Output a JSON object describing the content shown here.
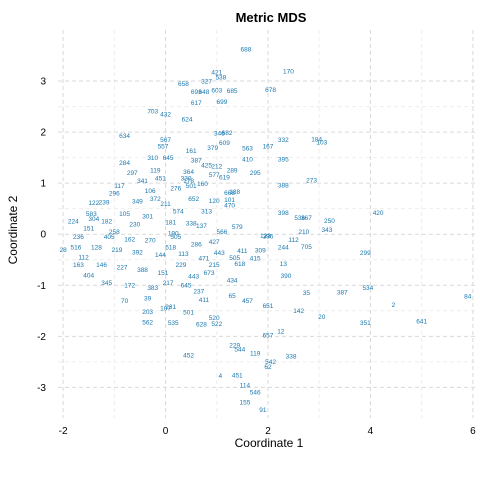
{
  "chart_data": {
    "type": "scatter",
    "title": "Metric  MDS",
    "xlabel": "Coordinate 1",
    "ylabel": "Coordinate 2",
    "xlim": [
      -2.1,
      6.1
    ],
    "ylim": [
      -3.6,
      4.0
    ],
    "xticks": [
      -2,
      0,
      2,
      4,
      6
    ],
    "yticks": [
      -3,
      -2,
      -1,
      0,
      1,
      2,
      3
    ],
    "xtick_labels": [
      "-2",
      "0",
      "2",
      "4",
      "6"
    ],
    "ytick_labels": [
      "-3",
      "-2",
      "-1",
      "0",
      "1",
      "2",
      "3"
    ],
    "grid": true,
    "label_color": "#1a78b0",
    "points": [
      {
        "label": "688",
        "x": 1.57,
        "y": 3.62
      },
      {
        "label": "170",
        "x": 2.4,
        "y": 3.19
      },
      {
        "label": "421",
        "x": 1.0,
        "y": 3.17
      },
      {
        "label": "538",
        "x": 1.08,
        "y": 3.08
      },
      {
        "label": "327",
        "x": 0.8,
        "y": 3.0
      },
      {
        "label": "658",
        "x": 0.35,
        "y": 2.95
      },
      {
        "label": "678",
        "x": 2.05,
        "y": 2.83
      },
      {
        "label": "685",
        "x": 1.3,
        "y": 2.81
      },
      {
        "label": "603",
        "x": 1.0,
        "y": 2.82
      },
      {
        "label": "693",
        "x": 0.6,
        "y": 2.79
      },
      {
        "label": "648",
        "x": 0.75,
        "y": 2.79
      },
      {
        "label": "617",
        "x": 0.6,
        "y": 2.58
      },
      {
        "label": "699",
        "x": 1.1,
        "y": 2.6
      },
      {
        "label": "703",
        "x": -0.25,
        "y": 2.41
      },
      {
        "label": "432",
        "x": 0.0,
        "y": 2.35
      },
      {
        "label": "624",
        "x": 0.42,
        "y": 2.25
      },
      {
        "label": "634",
        "x": -0.8,
        "y": 1.93
      },
      {
        "label": "346",
        "x": 1.05,
        "y": 1.98
      },
      {
        "label": "682",
        "x": 1.2,
        "y": 1.99
      },
      {
        "label": "567",
        "x": 0.0,
        "y": 1.85
      },
      {
        "label": "332",
        "x": 2.3,
        "y": 1.85
      },
      {
        "label": "184",
        "x": 2.95,
        "y": 1.86
      },
      {
        "label": "103",
        "x": 3.05,
        "y": 1.8
      },
      {
        "label": "609",
        "x": 1.15,
        "y": 1.79
      },
      {
        "label": "167",
        "x": 2.0,
        "y": 1.72
      },
      {
        "label": "379",
        "x": 0.92,
        "y": 1.69
      },
      {
        "label": "563",
        "x": 1.6,
        "y": 1.68
      },
      {
        "label": "410",
        "x": 1.6,
        "y": 1.47
      },
      {
        "label": "395",
        "x": 2.3,
        "y": 1.47
      },
      {
        "label": "645",
        "x": 0.05,
        "y": 1.5
      },
      {
        "label": "310",
        "x": -0.25,
        "y": 1.5
      },
      {
        "label": "425",
        "x": 0.8,
        "y": 1.35
      },
      {
        "label": "212",
        "x": 1.0,
        "y": 1.33
      },
      {
        "label": "364",
        "x": 0.45,
        "y": 1.22
      },
      {
        "label": "295",
        "x": 1.75,
        "y": 1.2
      },
      {
        "label": "273",
        "x": 2.85,
        "y": 1.06
      },
      {
        "label": "388",
        "x": 2.3,
        "y": 0.96
      },
      {
        "label": "178",
        "x": 0.45,
        "y": 1.05
      },
      {
        "label": "160",
        "x": 0.72,
        "y": 0.99
      },
      {
        "label": "668",
        "x": 1.25,
        "y": 0.81
      },
      {
        "label": "284",
        "x": -0.8,
        "y": 1.4
      },
      {
        "label": "122",
        "x": -1.4,
        "y": 0.62
      },
      {
        "label": "239",
        "x": -1.2,
        "y": 0.63
      },
      {
        "label": "583",
        "x": -1.45,
        "y": 0.4
      },
      {
        "label": "224",
        "x": -1.8,
        "y": 0.25
      },
      {
        "label": "236",
        "x": -1.7,
        "y": -0.05
      },
      {
        "label": "28",
        "x": -2.0,
        "y": -0.3
      },
      {
        "label": "420",
        "x": 4.15,
        "y": 0.42
      },
      {
        "label": "398",
        "x": 2.3,
        "y": 0.42
      },
      {
        "label": "536",
        "x": 2.62,
        "y": 0.32
      },
      {
        "label": "367",
        "x": 2.75,
        "y": 0.32
      },
      {
        "label": "250",
        "x": 3.2,
        "y": 0.26
      },
      {
        "label": "343",
        "x": 3.15,
        "y": 0.09
      },
      {
        "label": "210",
        "x": 2.7,
        "y": 0.05
      },
      {
        "label": "112",
        "x": 2.5,
        "y": -0.11
      },
      {
        "label": "244",
        "x": 2.3,
        "y": -0.25
      },
      {
        "label": "705",
        "x": 2.75,
        "y": -0.24
      },
      {
        "label": "299",
        "x": 3.9,
        "y": -0.36
      },
      {
        "label": "396",
        "x": 2.0,
        "y": -0.04
      },
      {
        "label": "123",
        "x": 1.95,
        "y": -0.03
      },
      {
        "label": "309",
        "x": 1.85,
        "y": -0.31
      },
      {
        "label": "13",
        "x": 2.3,
        "y": -0.58
      },
      {
        "label": "390",
        "x": 2.35,
        "y": -0.81
      },
      {
        "label": "415",
        "x": 1.75,
        "y": -0.47
      },
      {
        "label": "618",
        "x": 1.45,
        "y": -0.58
      },
      {
        "label": "434",
        "x": 1.3,
        "y": -0.9
      },
      {
        "label": "35",
        "x": 2.75,
        "y": -1.15
      },
      {
        "label": "387",
        "x": 3.45,
        "y": -1.14
      },
      {
        "label": "534",
        "x": 3.95,
        "y": -1.05
      },
      {
        "label": "84",
        "x": 5.9,
        "y": -1.21
      },
      {
        "label": "2",
        "x": 4.45,
        "y": -1.38
      },
      {
        "label": "641",
        "x": 5.0,
        "y": -1.7
      },
      {
        "label": "351",
        "x": 3.9,
        "y": -1.73
      },
      {
        "label": "20",
        "x": 3.05,
        "y": -1.62
      },
      {
        "label": "651",
        "x": 2.0,
        "y": -1.4
      },
      {
        "label": "142",
        "x": 2.6,
        "y": -1.5
      },
      {
        "label": "12",
        "x": 2.25,
        "y": -1.9
      },
      {
        "label": "657",
        "x": 2.0,
        "y": -1.98
      },
      {
        "label": "457",
        "x": 1.6,
        "y": -1.3
      },
      {
        "label": "65",
        "x": 1.3,
        "y": -1.2
      },
      {
        "label": "522",
        "x": 1.0,
        "y": -1.75
      },
      {
        "label": "520",
        "x": 0.95,
        "y": -1.64
      },
      {
        "label": "628",
        "x": 0.7,
        "y": -1.76
      },
      {
        "label": "501",
        "x": 0.45,
        "y": -1.53
      },
      {
        "label": "535",
        "x": 0.15,
        "y": -1.73
      },
      {
        "label": "562",
        "x": -0.35,
        "y": -1.72
      },
      {
        "label": "203",
        "x": -0.35,
        "y": -1.52
      },
      {
        "label": "107",
        "x": 0.0,
        "y": -1.45
      },
      {
        "label": "231",
        "x": 0.1,
        "y": -1.42
      },
      {
        "label": "70",
        "x": -0.8,
        "y": -1.3
      },
      {
        "label": "229",
        "x": 1.35,
        "y": -2.17
      },
      {
        "label": "544",
        "x": 1.45,
        "y": -2.25
      },
      {
        "label": "119",
        "x": 1.75,
        "y": -2.33
      },
      {
        "label": "452",
        "x": 0.45,
        "y": -2.37
      },
      {
        "label": "338",
        "x": 2.45,
        "y": -2.39
      },
      {
        "label": "542",
        "x": 2.05,
        "y": -2.5
      },
      {
        "label": "62",
        "x": 2.0,
        "y": -2.6
      },
      {
        "label": "4",
        "x": 1.07,
        "y": -2.77
      },
      {
        "label": "451",
        "x": 1.4,
        "y": -2.76
      },
      {
        "label": "114",
        "x": 1.55,
        "y": -2.96
      },
      {
        "label": "546",
        "x": 1.75,
        "y": -3.09
      },
      {
        "label": "155",
        "x": 1.55,
        "y": -3.29
      },
      {
        "label": "91",
        "x": 1.9,
        "y": -3.44
      },
      {
        "label": "577",
        "x": 0.95,
        "y": 1.17
      },
      {
        "label": "619",
        "x": 1.15,
        "y": 1.12
      },
      {
        "label": "289",
        "x": 1.3,
        "y": 1.25
      },
      {
        "label": "387",
        "x": 0.6,
        "y": 1.45
      },
      {
        "label": "161",
        "x": 0.5,
        "y": 1.64
      },
      {
        "label": "557",
        "x": -0.05,
        "y": 1.72
      },
      {
        "label": "501",
        "x": 0.5,
        "y": 0.95
      },
      {
        "label": "101",
        "x": 1.25,
        "y": 0.68
      },
      {
        "label": "188",
        "x": 1.35,
        "y": 0.83
      },
      {
        "label": "470",
        "x": 1.25,
        "y": 0.57
      },
      {
        "label": "120",
        "x": 0.95,
        "y": 0.66
      },
      {
        "label": "579",
        "x": 1.4,
        "y": 0.15
      },
      {
        "label": "443",
        "x": 1.05,
        "y": -0.36
      },
      {
        "label": "411",
        "x": 1.5,
        "y": -0.32
      },
      {
        "label": "505",
        "x": 1.35,
        "y": -0.46
      },
      {
        "label": "471",
        "x": 0.75,
        "y": -0.47
      },
      {
        "label": "215",
        "x": 0.95,
        "y": -0.6
      },
      {
        "label": "673",
        "x": 0.85,
        "y": -0.75
      },
      {
        "label": "443",
        "x": 0.55,
        "y": -0.82
      },
      {
        "label": "645",
        "x": 0.4,
        "y": -1.0
      },
      {
        "label": "411",
        "x": 0.75,
        "y": -1.28
      },
      {
        "label": "237",
        "x": 0.65,
        "y": -1.12
      },
      {
        "label": "137",
        "x": 0.7,
        "y": 0.17
      },
      {
        "label": "286",
        "x": 0.6,
        "y": -0.2
      },
      {
        "label": "505",
        "x": 0.2,
        "y": -0.05
      },
      {
        "label": "181",
        "x": 0.1,
        "y": 0.24
      },
      {
        "label": "313",
        "x": 0.8,
        "y": 0.45
      },
      {
        "label": "574",
        "x": 0.25,
        "y": 0.45
      },
      {
        "label": "338",
        "x": 0.5,
        "y": 0.22
      },
      {
        "label": "211",
        "x": 0.0,
        "y": 0.6
      },
      {
        "label": "106",
        "x": -0.3,
        "y": 0.85
      },
      {
        "label": "297",
        "x": -0.65,
        "y": 1.2
      },
      {
        "label": "117",
        "x": -0.9,
        "y": 0.95
      },
      {
        "label": "341",
        "x": -0.45,
        "y": 1.05
      },
      {
        "label": "451",
        "x": -0.1,
        "y": 1.1
      },
      {
        "label": "296",
        "x": -1.0,
        "y": 0.8
      },
      {
        "label": "349",
        "x": -0.55,
        "y": 0.65
      },
      {
        "label": "105",
        "x": -0.8,
        "y": 0.4
      },
      {
        "label": "182",
        "x": -1.15,
        "y": 0.25
      },
      {
        "label": "230",
        "x": -0.6,
        "y": 0.2
      },
      {
        "label": "301",
        "x": -0.35,
        "y": 0.35
      },
      {
        "label": "151",
        "x": -1.5,
        "y": 0.12
      },
      {
        "label": "405",
        "x": -1.1,
        "y": -0.05
      },
      {
        "label": "162",
        "x": -0.7,
        "y": -0.1
      },
      {
        "label": "270",
        "x": -0.3,
        "y": -0.12
      },
      {
        "label": "518",
        "x": 0.1,
        "y": -0.25
      },
      {
        "label": "144",
        "x": -0.1,
        "y": -0.4
      },
      {
        "label": "392",
        "x": -0.55,
        "y": -0.35
      },
      {
        "label": "219",
        "x": -0.95,
        "y": -0.3
      },
      {
        "label": "128",
        "x": -1.35,
        "y": -0.25
      },
      {
        "label": "112",
        "x": -1.6,
        "y": -0.45
      },
      {
        "label": "146",
        "x": -1.25,
        "y": -0.6
      },
      {
        "label": "227",
        "x": -0.85,
        "y": -0.65
      },
      {
        "label": "388",
        "x": -0.45,
        "y": -0.7
      },
      {
        "label": "151",
        "x": -0.05,
        "y": -0.75
      },
      {
        "label": "229",
        "x": 0.3,
        "y": -0.6
      },
      {
        "label": "345",
        "x": -1.15,
        "y": -0.95
      },
      {
        "label": "172",
        "x": -0.7,
        "y": -1.0
      },
      {
        "label": "383",
        "x": -0.25,
        "y": -1.05
      },
      {
        "label": "39",
        "x": -0.35,
        "y": -1.25
      },
      {
        "label": "217",
        "x": 0.05,
        "y": -0.95
      },
      {
        "label": "404",
        "x": -1.5,
        "y": -0.8
      },
      {
        "label": "163",
        "x": -1.7,
        "y": -0.6
      },
      {
        "label": "516",
        "x": -1.75,
        "y": -0.25
      },
      {
        "label": "304",
        "x": -1.4,
        "y": 0.3
      },
      {
        "label": "276",
        "x": 0.2,
        "y": 0.9
      },
      {
        "label": "119",
        "x": -0.2,
        "y": 1.25
      },
      {
        "label": "652",
        "x": 0.55,
        "y": 0.7
      },
      {
        "label": "190",
        "x": 0.15,
        "y": 0.02
      },
      {
        "label": "566",
        "x": 1.1,
        "y": 0.05
      },
      {
        "label": "427",
        "x": 0.95,
        "y": -0.15
      },
      {
        "label": "113",
        "x": 0.35,
        "y": -0.38
      },
      {
        "label": "258",
        "x": -1.0,
        "y": 0.05
      },
      {
        "label": "372",
        "x": -0.2,
        "y": 0.7
      },
      {
        "label": "330",
        "x": 0.4,
        "y": 1.1
      }
    ]
  }
}
